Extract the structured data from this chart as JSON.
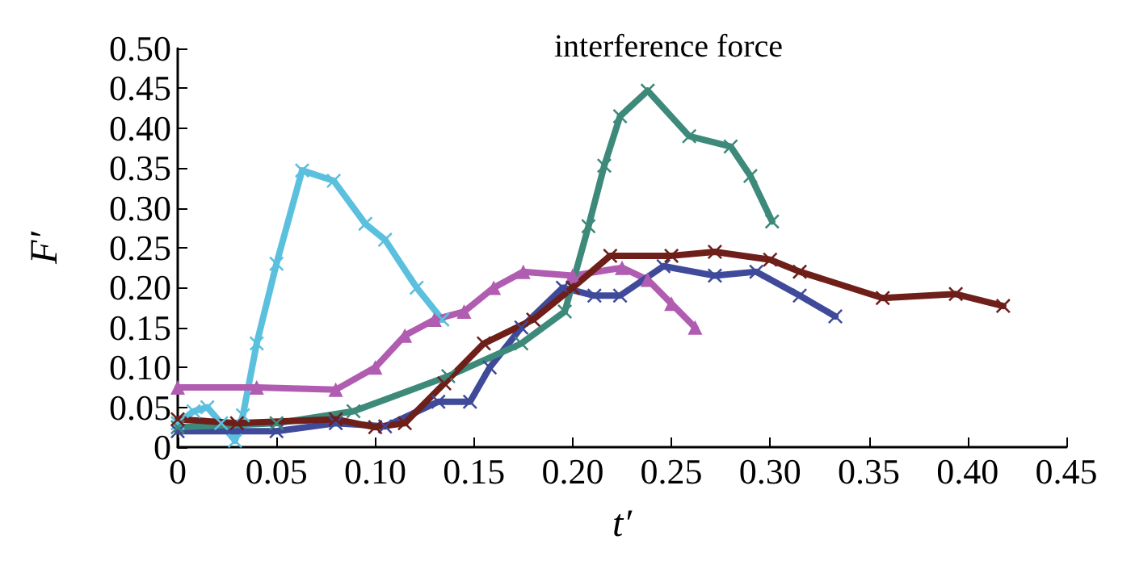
{
  "chart_data": {
    "type": "line",
    "title": "interference force",
    "xlabel": "t′",
    "ylabel": "F′",
    "xlim": [
      0,
      0.45
    ],
    "ylim": [
      0,
      0.5
    ],
    "xticks": [
      0,
      {
        "value": 0.05,
        "label": "0.05"
      },
      {
        "value": 0.1,
        "label": "0.10"
      },
      {
        "value": 0.15,
        "label": "0.15"
      },
      {
        "value": 0.2,
        "label": "0.20"
      },
      {
        "value": 0.25,
        "label": "0.25"
      },
      {
        "value": 0.3,
        "label": "0.30"
      },
      {
        "value": 0.35,
        "label": "0.35"
      },
      {
        "value": 0.4,
        "label": "0.40"
      },
      {
        "value": 0.45,
        "label": "0.45"
      }
    ],
    "yticks": [
      0,
      {
        "value": 0.05,
        "label": "0.05"
      },
      {
        "value": 0.1,
        "label": "0.10"
      },
      {
        "value": 0.15,
        "label": "0.15"
      },
      {
        "value": 0.2,
        "label": "0.20"
      },
      {
        "value": 0.25,
        "label": "0.25"
      },
      {
        "value": 0.3,
        "label": "0.30"
      },
      {
        "value": 0.35,
        "label": "0.35"
      },
      {
        "value": 0.4,
        "label": "0.40"
      },
      {
        "value": 0.45,
        "label": "0.45"
      },
      {
        "value": 0.5,
        "label": "0.50"
      }
    ],
    "grid": false,
    "series": [
      {
        "color": "#5bc0de",
        "marker": "cross",
        "x": [
          0,
          0.008,
          0.015,
          0.022,
          0.029,
          0.033,
          0.04,
          0.05,
          0.063,
          0.079,
          0.095,
          0.105,
          0.121,
          0.134
        ],
        "values": [
          0.03,
          0.045,
          0.05,
          0.03,
          0.008,
          0.04,
          0.13,
          0.23,
          0.347,
          0.334,
          0.28,
          0.26,
          0.2,
          0.16
        ]
      },
      {
        "color": "#b05cb0",
        "marker": "triangle",
        "x": [
          0,
          0.04,
          0.08,
          0.1,
          0.115,
          0.13,
          0.145,
          0.16,
          0.175,
          0.2,
          0.225,
          0.238,
          0.25,
          0.262
        ],
        "values": [
          0.075,
          0.075,
          0.072,
          0.1,
          0.14,
          0.16,
          0.17,
          0.2,
          0.22,
          0.215,
          0.225,
          0.21,
          0.18,
          0.15
        ]
      },
      {
        "color": "#3f4a9a",
        "marker": "cross",
        "x": [
          0,
          0.05,
          0.08,
          0.105,
          0.132,
          0.148,
          0.158,
          0.174,
          0.195,
          0.211,
          0.224,
          0.246,
          0.272,
          0.293,
          0.315,
          0.333
        ],
        "values": [
          0.02,
          0.02,
          0.03,
          0.026,
          0.057,
          0.057,
          0.1,
          0.15,
          0.2,
          0.19,
          0.19,
          0.227,
          0.215,
          0.22,
          0.19,
          0.164
        ]
      },
      {
        "color": "#3d8a7a",
        "marker": "cross",
        "x": [
          0,
          0.05,
          0.089,
          0.137,
          0.174,
          0.196,
          0.208,
          0.216,
          0.224,
          0.238,
          0.259,
          0.28,
          0.29,
          0.301
        ],
        "values": [
          0.025,
          0.03,
          0.045,
          0.089,
          0.13,
          0.17,
          0.277,
          0.353,
          0.415,
          0.447,
          0.39,
          0.377,
          0.34,
          0.283
        ]
      },
      {
        "color": "#6e1f1a",
        "marker": "cross",
        "x": [
          0,
          0.03,
          0.08,
          0.1,
          0.115,
          0.135,
          0.155,
          0.18,
          0.2,
          0.219,
          0.25,
          0.272,
          0.3,
          0.315,
          0.357,
          0.394,
          0.418
        ],
        "values": [
          0.035,
          0.03,
          0.035,
          0.025,
          0.03,
          0.08,
          0.13,
          0.16,
          0.2,
          0.24,
          0.24,
          0.245,
          0.235,
          0.22,
          0.187,
          0.192,
          0.177
        ]
      }
    ]
  }
}
